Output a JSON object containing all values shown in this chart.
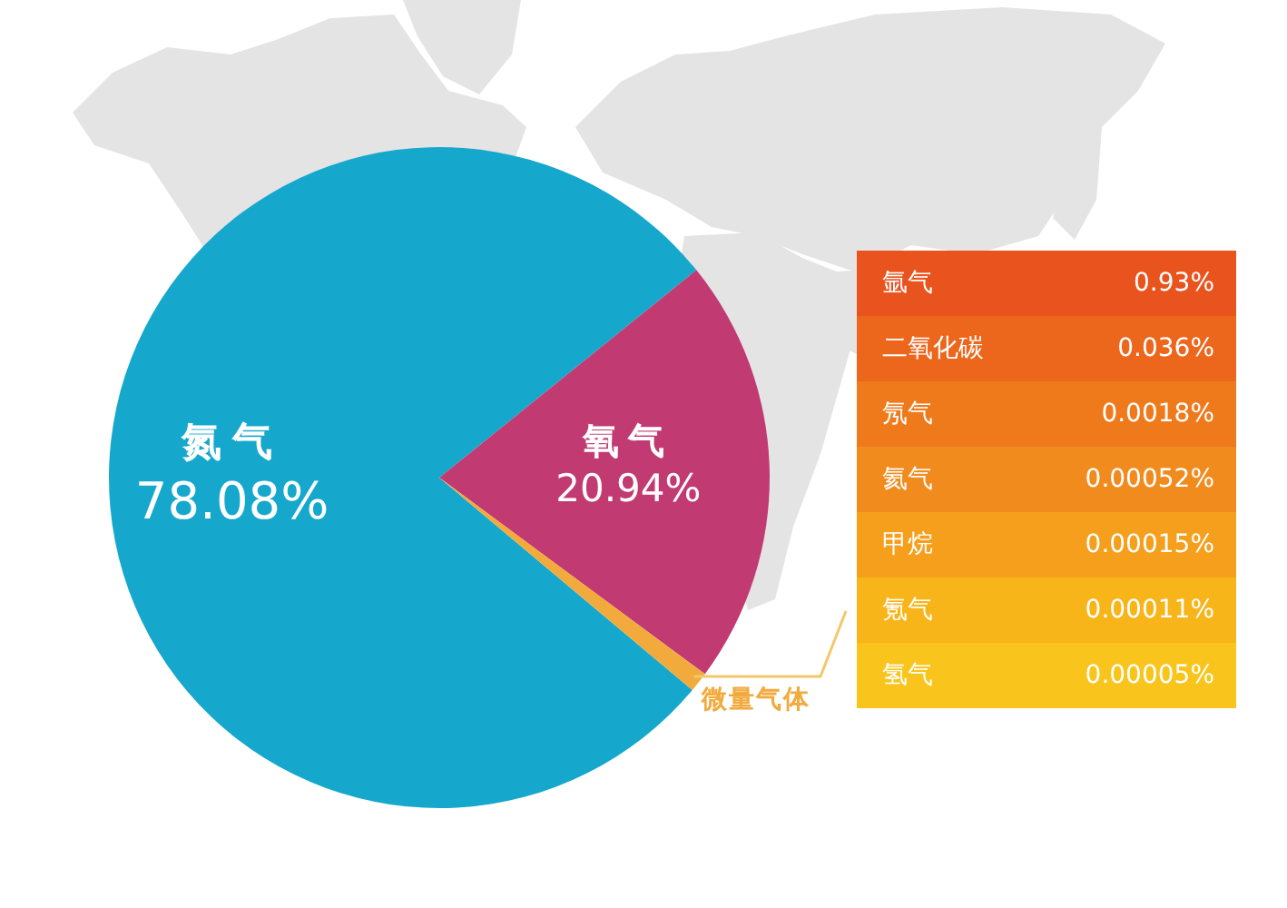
{
  "chart_data": [
    {
      "type": "pie",
      "categories": [
        "氮气",
        "氧气",
        "微量气体"
      ],
      "values": [
        78.08,
        20.94,
        0.98
      ],
      "colors": [
        "#16a8cc",
        "#c13b72",
        "#f2aa3c"
      ],
      "value_labels": [
        "78.08%",
        "20.94%",
        null
      ]
    },
    {
      "type": "other",
      "categories": [
        "氩气",
        "二氧化碳",
        "氖气",
        "氦气",
        "甲烷",
        "氪气",
        "氢气"
      ],
      "values": [
        0.93,
        0.036,
        0.0018,
        0.00052,
        0.00015,
        0.00011,
        5e-05
      ],
      "value_labels": [
        "0.93%",
        "0.036%",
        "0.0018%",
        "0.00052%",
        "0.00015%",
        "0.00011%",
        "0.00005%"
      ],
      "colors": [
        "#e9541e",
        "#ec661c",
        "#ef7a1c",
        "#f28b1e",
        "#f59f1c",
        "#f8b51a",
        "#f9c41c"
      ]
    }
  ]
}
